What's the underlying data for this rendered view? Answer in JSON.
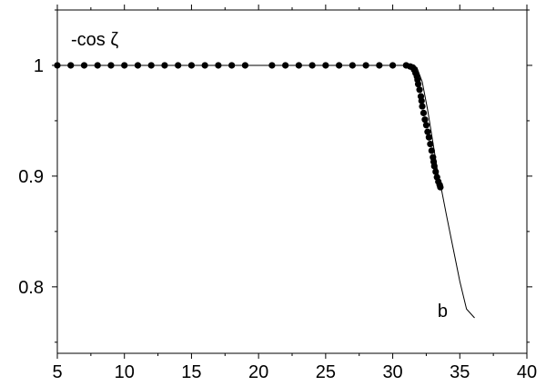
{
  "chart_data": {
    "type": "line",
    "title": "",
    "xlabel": "",
    "ylabel": "-cos ζ",
    "xlim": [
      5,
      40
    ],
    "ylim": [
      0.74,
      1.05
    ],
    "x_ticks": [
      5,
      10,
      15,
      20,
      25,
      30,
      35,
      40
    ],
    "y_ticks": [
      0.8,
      0.9,
      1
    ],
    "y_tick_labels": [
      "0.8",
      "0.9",
      "1"
    ],
    "grid": false,
    "annotation": {
      "text": "b",
      "x": 34.1,
      "y": 0.773
    },
    "series": [
      {
        "style": "line",
        "x": [
          5,
          31.5,
          31.8,
          32.2,
          32.6,
          33.0,
          33.4,
          33.6,
          34.0,
          34.5,
          35.0,
          35.5,
          36.1
        ],
        "y": [
          1.0,
          1.0,
          0.998,
          0.985,
          0.96,
          0.93,
          0.9,
          0.89,
          0.865,
          0.835,
          0.805,
          0.78,
          0.772
        ]
      },
      {
        "style": "markers",
        "x": [
          5.0,
          6.0,
          7.0,
          8.0,
          9.0,
          10.0,
          11.0,
          12.0,
          13.0,
          14.0,
          15.0,
          16.0,
          17.0,
          18.0,
          19.0,
          21.0,
          22.0,
          23.0,
          24.0,
          25.0,
          26.0,
          27.0,
          28.0,
          29.0,
          30.0,
          31.0,
          31.3,
          31.5,
          31.6,
          31.7,
          31.8,
          31.85,
          31.9,
          32.0,
          32.1,
          32.15,
          32.2,
          32.3,
          32.4,
          32.5,
          32.6,
          32.7,
          32.8,
          32.9,
          33.0,
          33.05,
          33.1,
          33.2,
          33.3,
          33.4,
          33.5,
          33.55
        ],
        "y": [
          1.0,
          1.0,
          1.0,
          1.0,
          1.0,
          1.0,
          1.0,
          1.0,
          1.0,
          1.0,
          1.0,
          1.0,
          1.0,
          1.0,
          1.0,
          1.0,
          1.0,
          1.0,
          1.0,
          1.0,
          1.0,
          1.0,
          1.0,
          1.0,
          1.0,
          1.0,
          0.999,
          0.998,
          0.996,
          0.993,
          0.99,
          0.987,
          0.983,
          0.978,
          0.972,
          0.968,
          0.963,
          0.957,
          0.951,
          0.946,
          0.94,
          0.935,
          0.929,
          0.923,
          0.917,
          0.913,
          0.909,
          0.904,
          0.899,
          0.895,
          0.892,
          0.89
        ]
      }
    ]
  }
}
